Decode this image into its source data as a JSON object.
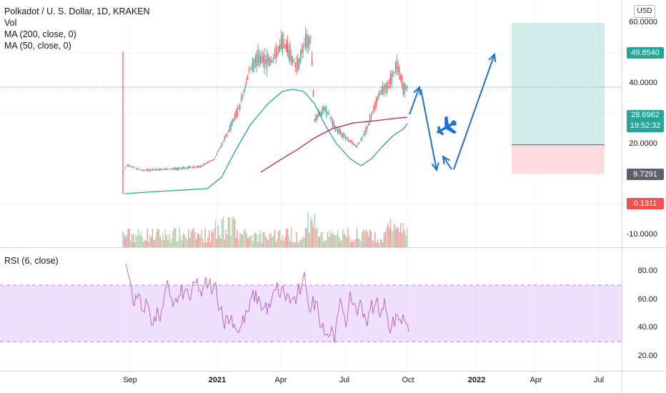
{
  "legend": {
    "symbol": "Polkadot / U. S. Dollar, 1D, KRAKEN",
    "vol": "Vol",
    "ma200": "MA (200, close, 0)",
    "ma50": "MA (50, close, 0)",
    "rsi": "RSI (6, close)"
  },
  "currency": "USD",
  "price_axis": [
    "60.0000",
    "40.0000",
    "20.0000",
    "-10.0000"
  ],
  "price_tags": {
    "target": "49.8540",
    "current": "28.6962",
    "countdown": "19:52:32",
    "entry": "9.7291",
    "stop": "0.1311"
  },
  "rsi_axis": [
    "80.00",
    "60.00",
    "40.00",
    "20.00"
  ],
  "time_axis": [
    "Sep",
    "2021",
    "Apr",
    "Jul",
    "Oct",
    "2022",
    "Apr",
    "Jul"
  ],
  "colors": {
    "candle_up": "#26a69a",
    "candle_down": "#ef5350",
    "ma200": "#c2185b",
    "ma50": "#26a69a",
    "rsi_line": "#ba68c8",
    "rsi_band": "#e9d5fb",
    "target_zone": "#b2dfdb",
    "stop_zone": "#ffcdd2",
    "arrow": "#1e6fd9",
    "airplane_icon": "#1e6fd9"
  },
  "chart_data": {
    "type": "line",
    "y_axis_ticks": [
      60,
      40,
      20,
      -10
    ],
    "rsi_ticks": [
      80,
      60,
      40,
      20
    ],
    "rsi_band": [
      30,
      70
    ],
    "x_ticks": [
      "Sep",
      "2021",
      "Apr",
      "Jul",
      "Oct",
      "2022",
      "Apr",
      "Jul"
    ],
    "series": [
      {
        "name": "MA (200, close, 0)"
      },
      {
        "name": "MA (50, close, 0)"
      },
      {
        "name": "RSI (6, close)"
      }
    ],
    "levels": {
      "target": 49.854,
      "current": 28.6962,
      "entry": 9.7291,
      "stop": 0.1311
    }
  }
}
